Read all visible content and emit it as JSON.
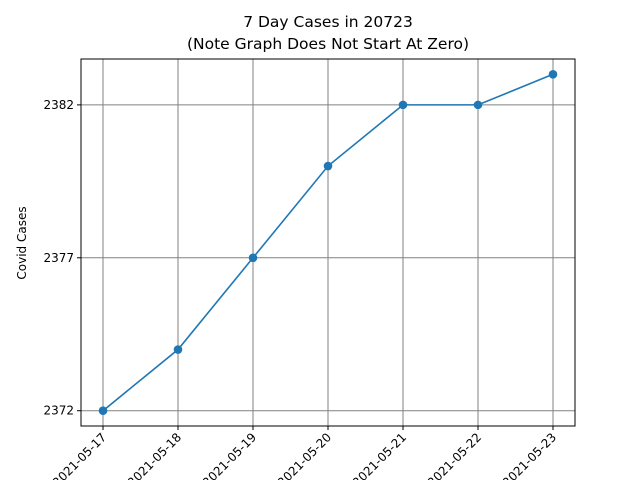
{
  "chart_data": {
    "type": "line",
    "title": "7 Day Cases in 20723",
    "subtitle": "(Note Graph Does Not Start At Zero)",
    "xlabel": "",
    "ylabel": "Covid Cases",
    "x_tick_labels": [
      "2021-05-17",
      "2021-05-18",
      "2021-05-19",
      "2021-05-20",
      "2021-05-21",
      "2021-05-22",
      "2021-05-23"
    ],
    "y_ticks": [
      2372,
      2377,
      2382
    ],
    "ylim": [
      2371.5,
      2383.5
    ],
    "grid": true,
    "series": [
      {
        "color": "#1f77b4",
        "x": [
          "2021-05-17",
          "2021-05-18",
          "2021-05-19",
          "2021-05-20",
          "2021-05-21",
          "2021-05-22",
          "2021-05-23"
        ],
        "values": [
          2372,
          2374,
          2377,
          2380,
          2382,
          2382,
          2383
        ]
      }
    ]
  }
}
